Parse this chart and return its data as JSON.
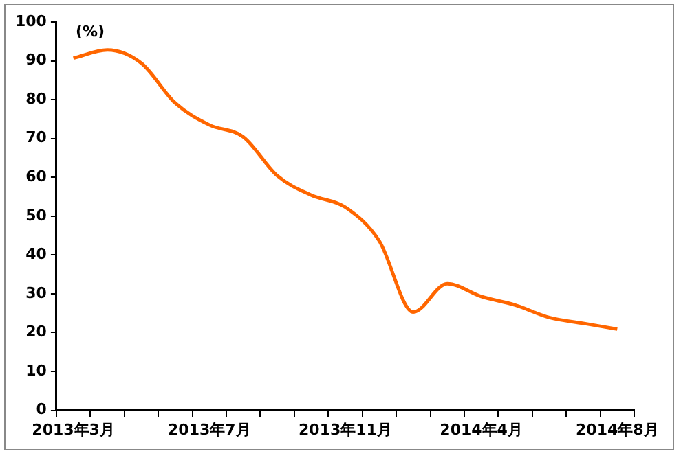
{
  "chart_data": {
    "type": "line",
    "ylabel": "(%)",
    "categories": [
      "2013年3月",
      null,
      null,
      null,
      "2013年7月",
      null,
      null,
      null,
      "2013年11月",
      null,
      null,
      null,
      "2014年4月",
      null,
      null,
      null,
      "2014年8月"
    ],
    "series": [
      {
        "color": "#ff6600",
        "values": [
          90.7,
          92.8,
          89.4,
          79.1,
          73.5,
          70.4,
          60.4,
          55.4,
          52.3,
          43.6,
          25.3,
          32.6,
          29.3,
          27.1,
          23.9,
          22.4,
          20.9
        ]
      }
    ],
    "ylim": [
      0,
      100
    ],
    "yticks": [
      0,
      10,
      20,
      30,
      40,
      50,
      60,
      70,
      80,
      90,
      100
    ],
    "grid": false,
    "legend": false,
    "marker": "none",
    "line_style": "solid"
  }
}
